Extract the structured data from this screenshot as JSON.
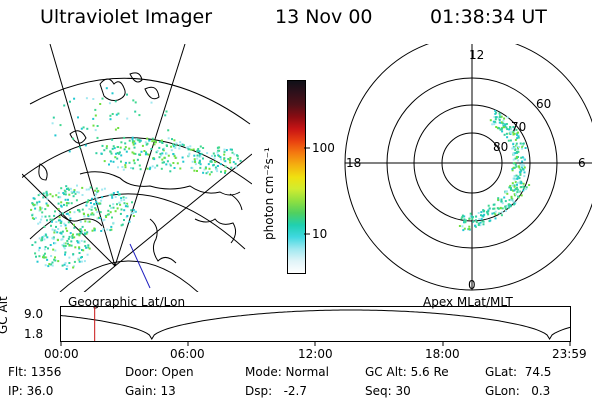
{
  "header": {
    "title": "Ultraviolet Imager",
    "date": "13 Nov 00",
    "time": "01:38:34 UT"
  },
  "colorbar": {
    "label": "photon cm⁻²s⁻¹",
    "ticks": [
      "100",
      "10"
    ],
    "colors": [
      "#101018",
      "#30101a",
      "#501018",
      "#8a0c12",
      "#c81414",
      "#e84010",
      "#f47a10",
      "#f4b010",
      "#f0e010",
      "#d0ec30",
      "#90e040",
      "#50d060",
      "#20d0b0",
      "#40d8e0",
      "#a0e8f0",
      "#e0f4f8",
      "#ffffff"
    ]
  },
  "geo_map": {
    "caption": "Geographic Lat/Lon",
    "aurora_color": "#40d890",
    "land_color": "#000000"
  },
  "polar_map": {
    "caption": "Apex MLat/MLT",
    "mlt_labels": {
      "top": "12",
      "left": "18",
      "right": "6",
      "bottom": "0"
    },
    "lat_labels": [
      "60",
      "70",
      "80"
    ]
  },
  "timeline": {
    "y_axis_label": "GC Alt",
    "y_ticks": [
      "9.0",
      "1.8"
    ],
    "x_ticks": [
      "00:00",
      "06:00",
      "12:00",
      "18:00",
      "23:59"
    ],
    "marker_time_fraction": 0.068,
    "marker_color": "#c81414"
  },
  "info": {
    "flt": "Flt: 1356",
    "ip": "IP: 36.0",
    "door": "Door: Open",
    "gain": "Gain: 13",
    "mode": "Mode: Normal",
    "dsp": "Dsp:   -2.7",
    "gcalt": "GC Alt: 5.6 Re",
    "seq": "Seq: 30",
    "glat": "GLat:  74.5",
    "glon": "GLon:   0.3"
  }
}
